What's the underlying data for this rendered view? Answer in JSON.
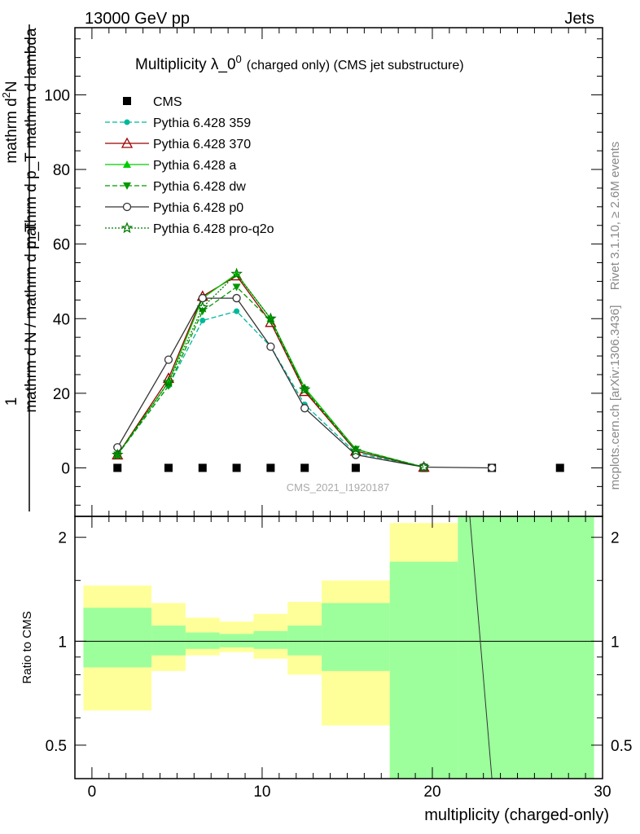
{
  "header": {
    "left": "13000 GeV pp",
    "right": "Jets"
  },
  "side_labels": {
    "rivet": "Rivet 3.1.10, ≥ 2.6M events",
    "mcplots": "mcplots.cern.ch [arXiv:1306.3436]"
  },
  "chart_data": [
    {
      "type": "line",
      "title_main": "Multiplicity λ_0",
      "title_sup": "0",
      "title_note": "(charged only) (CMS jet substructure)",
      "watermark": "CMS_2021_I1920187",
      "ylabel_numerator": "mathrm d",
      "ylabel_numerator_sup": "2",
      "ylabel_numerator_tail": "N",
      "ylabel_full": "mathrm d p_T mathrm d lambda",
      "ylabel_one": "1",
      "ylabel_denominator": "mathrm d N / mathrm d p_T",
      "ylim": [
        -13,
        118
      ],
      "xlim": [
        -1,
        30
      ],
      "yticks": [
        "0",
        "20",
        "40",
        "60",
        "80",
        "100"
      ],
      "legend_position": "top-left",
      "series": [
        {
          "name": "CMS",
          "color": "#000000",
          "marker": "square",
          "dash": "none",
          "x": [
            1.5,
            4.5,
            6.5,
            8.5,
            10.5,
            12.5,
            15.5,
            19.5,
            23.5,
            27.5
          ],
          "y": [
            0,
            0,
            0,
            0,
            0,
            0,
            0,
            0,
            0,
            0
          ]
        },
        {
          "name": "Pythia 6.428 359",
          "color": "#00b89a",
          "marker": "dot",
          "dash": "6,3",
          "x": [
            1.5,
            4.5,
            6.5,
            8.5,
            10.5,
            12.5,
            15.5,
            19.5
          ],
          "y": [
            3.5,
            22,
            39.5,
            42,
            32.5,
            17,
            4,
            0.2
          ]
        },
        {
          "name": "Pythia 6.428 370",
          "color": "#9b0000",
          "marker": "triangle-open",
          "dash": "none",
          "x": [
            1.5,
            4.5,
            6.5,
            8.5,
            10.5,
            12.5,
            15.5,
            19.5
          ],
          "y": [
            3.5,
            24,
            46,
            51.5,
            39,
            20.5,
            4.5,
            0.2
          ]
        },
        {
          "name": "Pythia 6.428 a",
          "color": "#00cc00",
          "marker": "triangle",
          "dash": "none",
          "x": [
            1.5,
            4.5,
            6.5,
            8.5,
            10.5,
            12.5,
            15.5,
            19.5
          ],
          "y": [
            3.5,
            23,
            45.5,
            52,
            40,
            21.5,
            5,
            0.2
          ]
        },
        {
          "name": "Pythia 6.428 dw",
          "color": "#009900",
          "marker": "triangle-down",
          "dash": "6,3",
          "x": [
            1.5,
            4.5,
            6.5,
            8.5,
            10.5,
            12.5,
            15.5,
            19.5
          ],
          "y": [
            3.5,
            22,
            42,
            48.5,
            39.5,
            21,
            5,
            0.2
          ]
        },
        {
          "name": "Pythia 6.428 p0",
          "color": "#333333",
          "marker": "circle-open",
          "dash": "none",
          "x": [
            1.5,
            4.5,
            6.5,
            8.5,
            10.5,
            12.5,
            15.5,
            19.5,
            23.5
          ],
          "y": [
            5.5,
            29,
            45.5,
            45.5,
            32.5,
            16,
            3.5,
            0.2,
            0
          ]
        },
        {
          "name": "Pythia 6.428 pro-q2o",
          "color": "#007700",
          "marker": "star",
          "dash": "2,2",
          "x": [
            1.5,
            4.5,
            6.5,
            8.5,
            10.5,
            12.5,
            15.5,
            19.5
          ],
          "y": [
            3.5,
            23,
            43,
            52,
            40,
            21,
            4.5,
            0.2
          ]
        }
      ]
    },
    {
      "type": "area",
      "ylabel": "Ratio to CMS",
      "xlabel": "multiplicity (charged-only)",
      "xticks": [
        "0",
        "10",
        "20",
        "30"
      ],
      "yticks": [
        "0.5",
        "1",
        "2"
      ],
      "ylim": [
        0.4,
        2.3
      ],
      "xlim": [
        -1,
        30
      ],
      "yscale": "log",
      "reference_line": 1,
      "bins": [
        {
          "x0": -0.5,
          "x1": 3.5,
          "stat_lo": 0.84,
          "stat_hi": 1.25,
          "tot_lo": 0.63,
          "tot_hi": 1.45
        },
        {
          "x0": 3.5,
          "x1": 5.5,
          "stat_lo": 0.91,
          "stat_hi": 1.11,
          "tot_lo": 0.82,
          "tot_hi": 1.29
        },
        {
          "x0": 5.5,
          "x1": 7.5,
          "stat_lo": 0.95,
          "stat_hi": 1.06,
          "tot_lo": 0.91,
          "tot_hi": 1.17
        },
        {
          "x0": 7.5,
          "x1": 9.5,
          "stat_lo": 0.96,
          "stat_hi": 1.05,
          "tot_lo": 0.93,
          "tot_hi": 1.14
        },
        {
          "x0": 9.5,
          "x1": 11.5,
          "stat_lo": 0.95,
          "stat_hi": 1.07,
          "tot_lo": 0.89,
          "tot_hi": 1.2
        },
        {
          "x0": 11.5,
          "x1": 13.5,
          "stat_lo": 0.91,
          "stat_hi": 1.11,
          "tot_lo": 0.8,
          "tot_hi": 1.3
        },
        {
          "x0": 13.5,
          "x1": 17.5,
          "stat_lo": 0.82,
          "stat_hi": 1.29,
          "tot_lo": 0.57,
          "tot_hi": 1.5
        },
        {
          "x0": 17.5,
          "x1": 21.5,
          "stat_lo": 0.4,
          "stat_hi": 1.7,
          "tot_lo": 0.4,
          "tot_hi": 2.2
        },
        {
          "x0": 21.5,
          "x1": 29.5,
          "stat_lo": 0.4,
          "stat_hi": 2.3,
          "tot_lo": 0.4,
          "tot_hi": 2.3
        }
      ],
      "steep_line": {
        "x_top": 22.2,
        "x_bottom": 23.5
      },
      "colors": {
        "stat": "#9cff9c",
        "total": "#ffff99"
      }
    }
  ]
}
